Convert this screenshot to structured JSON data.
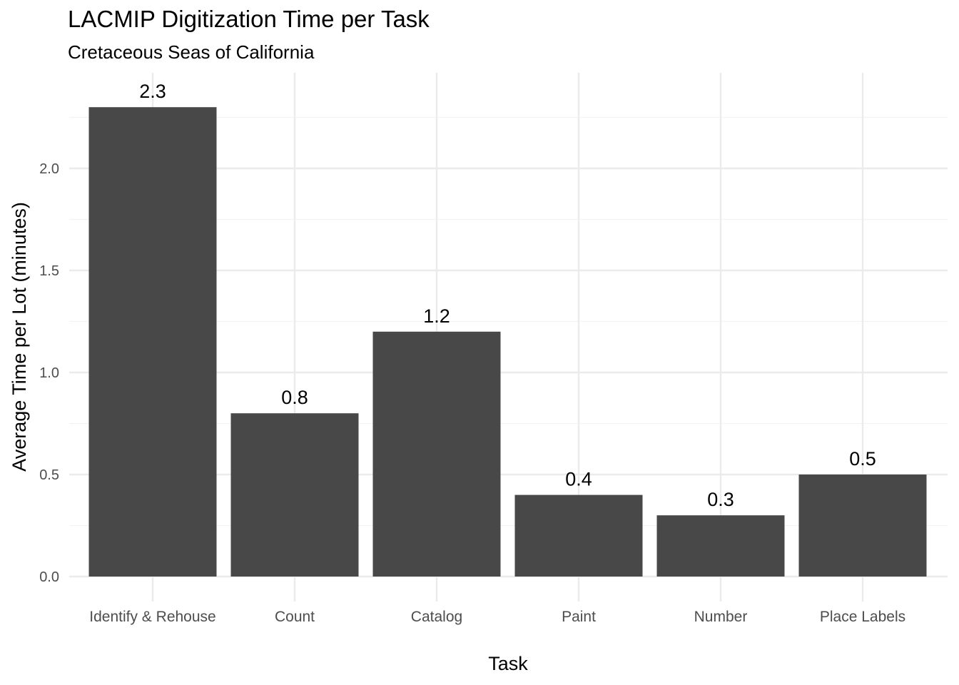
{
  "chart_data": {
    "type": "bar",
    "title": "LACMIP Digitization Time per Task",
    "subtitle": "Cretaceous Seas of California",
    "xlabel": "Task",
    "ylabel": "Average Time per Lot (minutes)",
    "categories": [
      "Identify & Rehouse",
      "Count",
      "Catalog",
      "Paint",
      "Number",
      "Place Labels"
    ],
    "values": [
      2.3,
      0.8,
      1.2,
      0.4,
      0.3,
      0.5
    ],
    "data_labels": [
      "2.3",
      "0.8",
      "1.2",
      "0.4",
      "0.3",
      "0.5"
    ],
    "y_ticks": [
      0.0,
      0.5,
      1.0,
      1.5,
      2.0
    ],
    "y_tick_labels": [
      "0.0",
      "0.5",
      "1.0",
      "1.5",
      "2.0"
    ],
    "ylim": [
      0,
      2.3
    ],
    "grid": true,
    "legend": "none",
    "bar_color": "#484848",
    "grid_major_color": "#ebebeb",
    "grid_minor_color": "#f3f3f3"
  }
}
